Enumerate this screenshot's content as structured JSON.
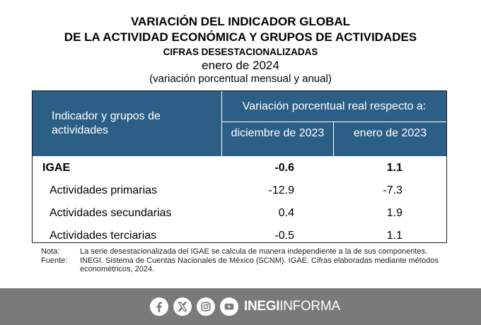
{
  "title": {
    "line1": "VARIACIÓN DEL INDICADOR GLOBAL",
    "line2": "DE LA ACTIVIDAD ECONÓMICA Y GRUPOS DE ACTIVIDADES",
    "subtitle": "CIFRAS DESESTACIONALIZADAS",
    "period": "enero de 2024",
    "note": "(variación porcentual mensual y anual)"
  },
  "table": {
    "header": {
      "col1": "Indicador y grupos de actividades",
      "group": "Variación porcentual real respecto a:",
      "col2": "diciembre de 2023",
      "col3": "enero de 2023"
    },
    "rows": [
      {
        "name": "IGAE",
        "dec_2023": "-0.6",
        "jan_2023": "1.1",
        "bold": true
      },
      {
        "name": "Actividades primarias",
        "dec_2023": "-12.9",
        "jan_2023": "-7.3"
      },
      {
        "name": "Actividades secundarias",
        "dec_2023": "0.4",
        "jan_2023": "1.9"
      },
      {
        "name": "Actividades terciarias",
        "dec_2023": "-0.5",
        "jan_2023": "1.1"
      }
    ]
  },
  "notes": {
    "nota_label": "Nota:",
    "nota_text": "La serie desestacionalizada del IGAE se calcula de manera independiente a la de sus componentes.",
    "fuente_label": "Fuente:",
    "fuente_text": "INEGI. Sistema de Cuentas Nacionales de México (SCNM). IGAE. Cifras elaboradas mediante métodos econométricos, 2024."
  },
  "footer": {
    "social_icons": [
      "facebook-icon",
      "x-icon",
      "instagram-icon",
      "youtube-icon"
    ],
    "brand_bold": "INEGI",
    "brand_light": "INFORMA",
    "background": "#7a7a7a"
  },
  "colors": {
    "header_bg": "#2c5f86",
    "header_text": "#ffffff"
  }
}
